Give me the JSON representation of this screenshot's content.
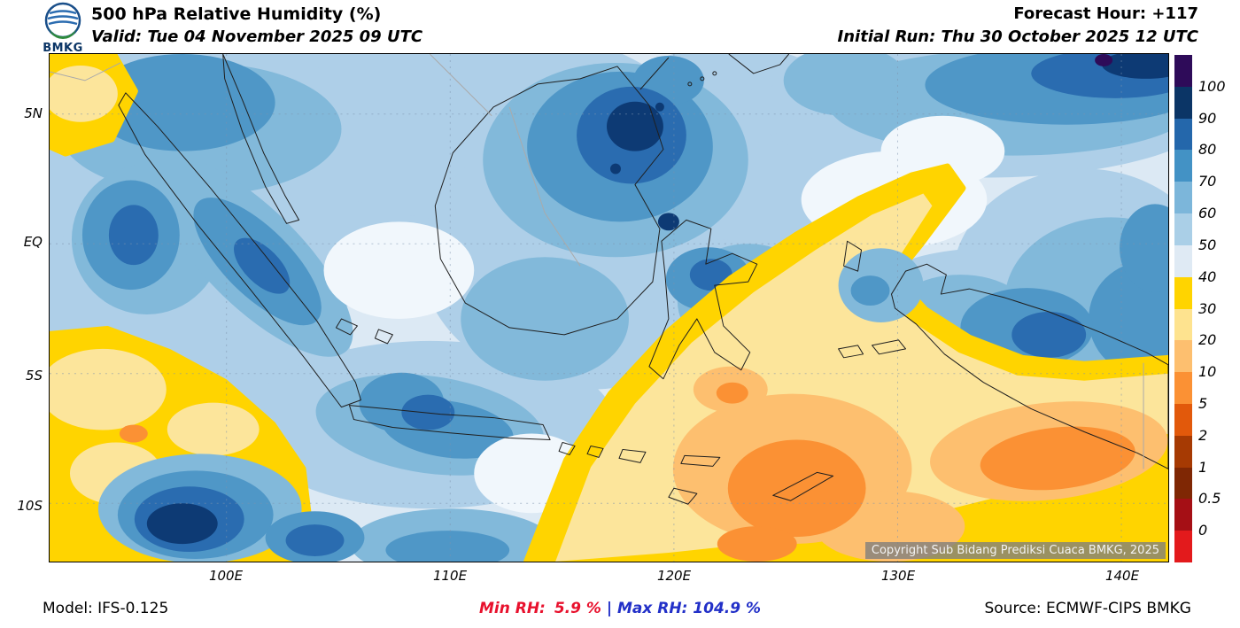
{
  "header": {
    "logo": "BMKG",
    "title": "500 hPa Relative Humidity (%)",
    "valid": "Valid: Tue 04 November 2025 09 UTC",
    "forecast_hour": "Forecast Hour: +117",
    "initial_run": "Initial Run: Thu 30 October 2025 12 UTC"
  },
  "map": {
    "y_ticks": [
      "5N",
      "EQ",
      "5S",
      "10S"
    ],
    "x_ticks": [
      "100E",
      "110E",
      "120E",
      "130E",
      "140E"
    ],
    "copyright": "Copyright Sub Bidang Prediksi Cuaca BMKG, 2025"
  },
  "colorbar": {
    "labels": [
      "100",
      "90",
      "80",
      "70",
      "60",
      "50",
      "40",
      "30",
      "20",
      "10",
      "5",
      "2",
      "1",
      "0.5",
      "0"
    ],
    "colors_top_to_bottom": [
      "#2e0b59",
      "#0b3566",
      "#2467ab",
      "#4392c5",
      "#7cb6da",
      "#aacfe7",
      "#dfeaf4",
      "#ffd400",
      "#fee38f",
      "#fdbf6f",
      "#fb9134",
      "#e2590b",
      "#a63a03",
      "#7f2704",
      "#a50f15",
      "#e31a1c"
    ]
  },
  "footer": {
    "model": "Model: IFS-0.125",
    "min_label": "Min RH:",
    "min_value": "5.9 %",
    "separator": "|",
    "max_label": "Max RH:",
    "max_value": "104.9 %",
    "source": "Source: ECMWF-CIPS BMKG",
    "min_color": "#e8112d",
    "max_color": "#2230c8"
  },
  "chart_data": {
    "type": "heatmap",
    "title": "500 hPa Relative Humidity (%)",
    "units": "%",
    "levels": [
      0,
      0.5,
      1,
      2,
      5,
      10,
      20,
      30,
      40,
      50,
      60,
      70,
      80,
      90,
      100
    ],
    "x_ticks": [
      "100E",
      "110E",
      "120E",
      "130E",
      "140E"
    ],
    "y_ticks": [
      "5N",
      "EQ",
      "5S",
      "10S"
    ],
    "min_rh_percent": 5.9,
    "max_rh_percent": 104.9
  }
}
